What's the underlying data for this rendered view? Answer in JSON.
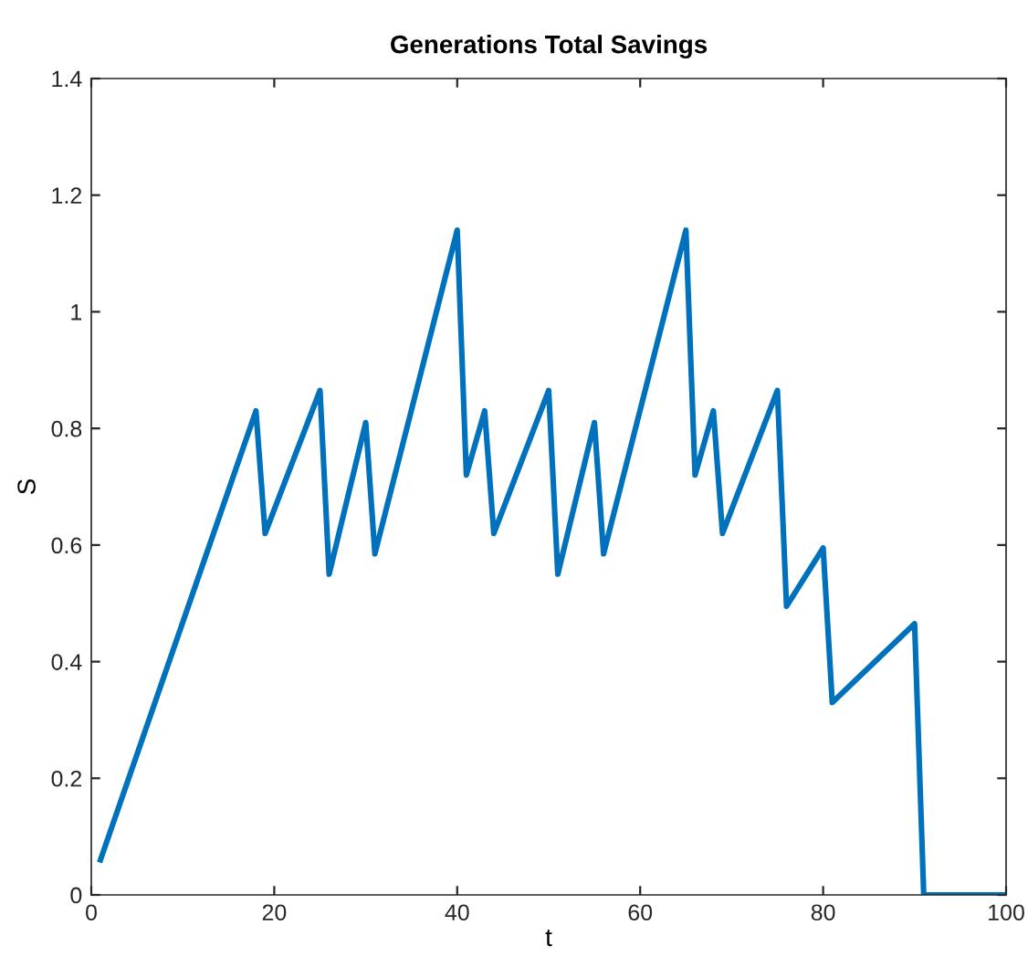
{
  "chart_data": {
    "type": "line",
    "title": "Generations Total Savings",
    "xlabel": "t",
    "ylabel": "S",
    "x": [
      1,
      18,
      19,
      25,
      26,
      30,
      31,
      40,
      41,
      43,
      44,
      50,
      51,
      55,
      56,
      65,
      66,
      68,
      69,
      75,
      76,
      80,
      81,
      90,
      91,
      100
    ],
    "series": [
      {
        "color": "#0072bd",
        "values": [
          0.06,
          0.83,
          0.62,
          0.865,
          0.55,
          0.81,
          0.585,
          1.14,
          0.72,
          0.83,
          0.62,
          0.865,
          0.55,
          0.81,
          0.585,
          1.14,
          0.72,
          0.83,
          0.62,
          0.865,
          0.495,
          0.595,
          0.33,
          0.465,
          0,
          0
        ]
      }
    ],
    "xlim": [
      0,
      100
    ],
    "xticks": [
      0,
      20,
      40,
      60,
      80,
      100
    ],
    "ylim": [
      0,
      1.4
    ],
    "yticks": [
      0,
      0.2,
      0.4,
      0.6,
      0.8,
      1,
      1.2,
      1.4
    ],
    "grid": false,
    "legend": false,
    "marker": "none",
    "line_style": "solid"
  }
}
